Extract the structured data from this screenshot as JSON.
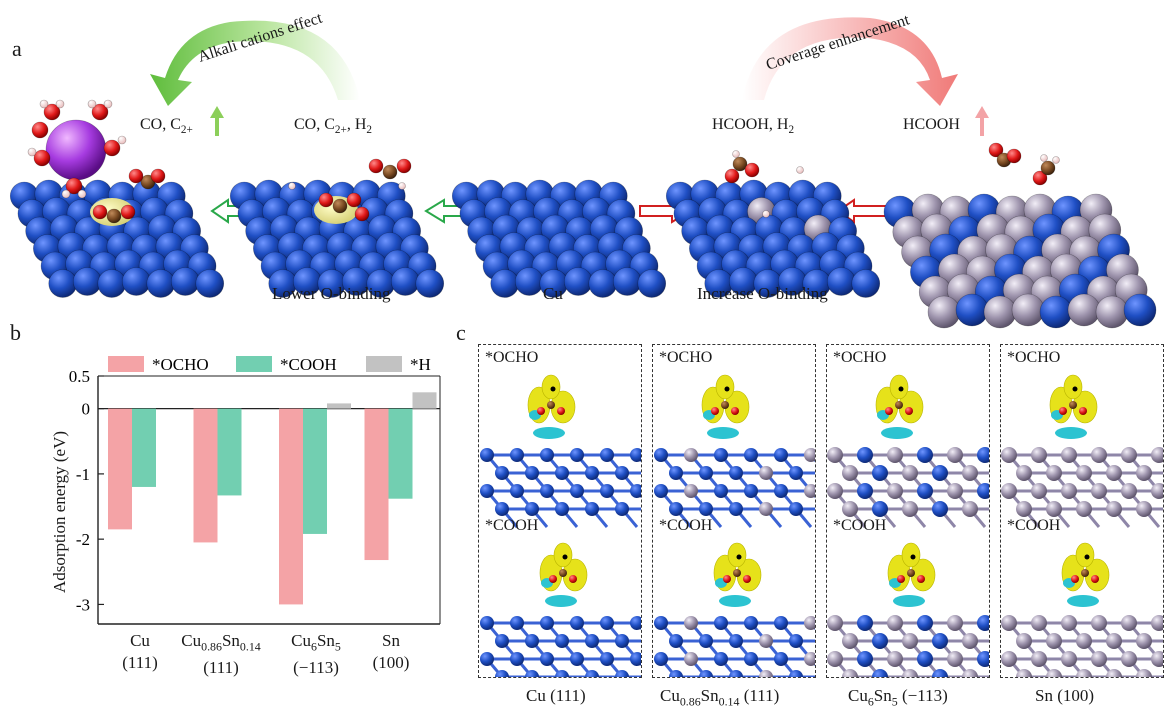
{
  "panel_a": {
    "label": "a",
    "curved_arrows": [
      {
        "text": "Alkali cations effect",
        "color": "#6cc24a"
      },
      {
        "text": "Coverage enhancement",
        "color": "#f08a86"
      }
    ],
    "products": [
      {
        "text": "CO, C2+",
        "arrow": "up",
        "arrow_color": "#8ccf5a"
      },
      {
        "text": "CO, C2+, H2"
      },
      {
        "text": "HCOOH, H2"
      },
      {
        "text": "HCOOH",
        "arrow": "up",
        "arrow_color": "#f3a3a6"
      }
    ],
    "captions": [
      "Lower O-binding",
      "Cu",
      "Increase O-binding"
    ],
    "colors": {
      "cu": "#1f4fc4",
      "sn": "#9e94ad",
      "o": "#e01818",
      "c": "#7a4a22",
      "h": "#f3d6d6",
      "k": "#a63be0",
      "sulfur": "#e6e27a"
    }
  },
  "panel_b": {
    "label": "b",
    "legend": [
      "*OCHO",
      "*COOH",
      "*H"
    ]
  },
  "chart_data": {
    "type": "bar",
    "categories": [
      "Cu (111)",
      "Cu0.86Sn0.14 (111)",
      "Cu6Sn5 (−113)",
      "Sn (100)"
    ],
    "series": [
      {
        "name": "*OCHO",
        "values": [
          -1.85,
          -2.05,
          -3.0,
          -2.32
        ],
        "color": "#f4a3a6"
      },
      {
        "name": "*COOH",
        "values": [
          -1.2,
          -1.33,
          -1.92,
          -1.38
        ],
        "color": "#72cfb1"
      },
      {
        "name": "*H",
        "values": [
          0.0,
          0.0,
          0.08,
          0.25
        ],
        "color": "#c2c2c2"
      }
    ],
    "ylabel": "Adsorption energy (eV)",
    "ylim": [
      -3.3,
      0.5
    ],
    "yticks": [
      "0.5",
      "0",
      "-1",
      "-2",
      "-3"
    ],
    "ytick_values": [
      0.5,
      0,
      -1,
      -2,
      -3
    ],
    "legend_position": "top"
  },
  "panel_c": {
    "label": "c",
    "boxes": [
      {
        "top": "*OCHO",
        "bottom": "*COOH",
        "substrate": "cu"
      },
      {
        "top": "*OCHO",
        "bottom": "*COOH",
        "substrate": "cusn"
      },
      {
        "top": "*OCHO",
        "bottom": "*COOH",
        "substrate": "cu6sn5"
      },
      {
        "top": "*OCHO",
        "bottom": "*COOH",
        "substrate": "sn"
      }
    ],
    "captions": [
      "Cu (111)",
      "Cu0.86Sn0.14 (111)",
      "Cu6Sn5 (−113)",
      "Sn (100)"
    ]
  }
}
